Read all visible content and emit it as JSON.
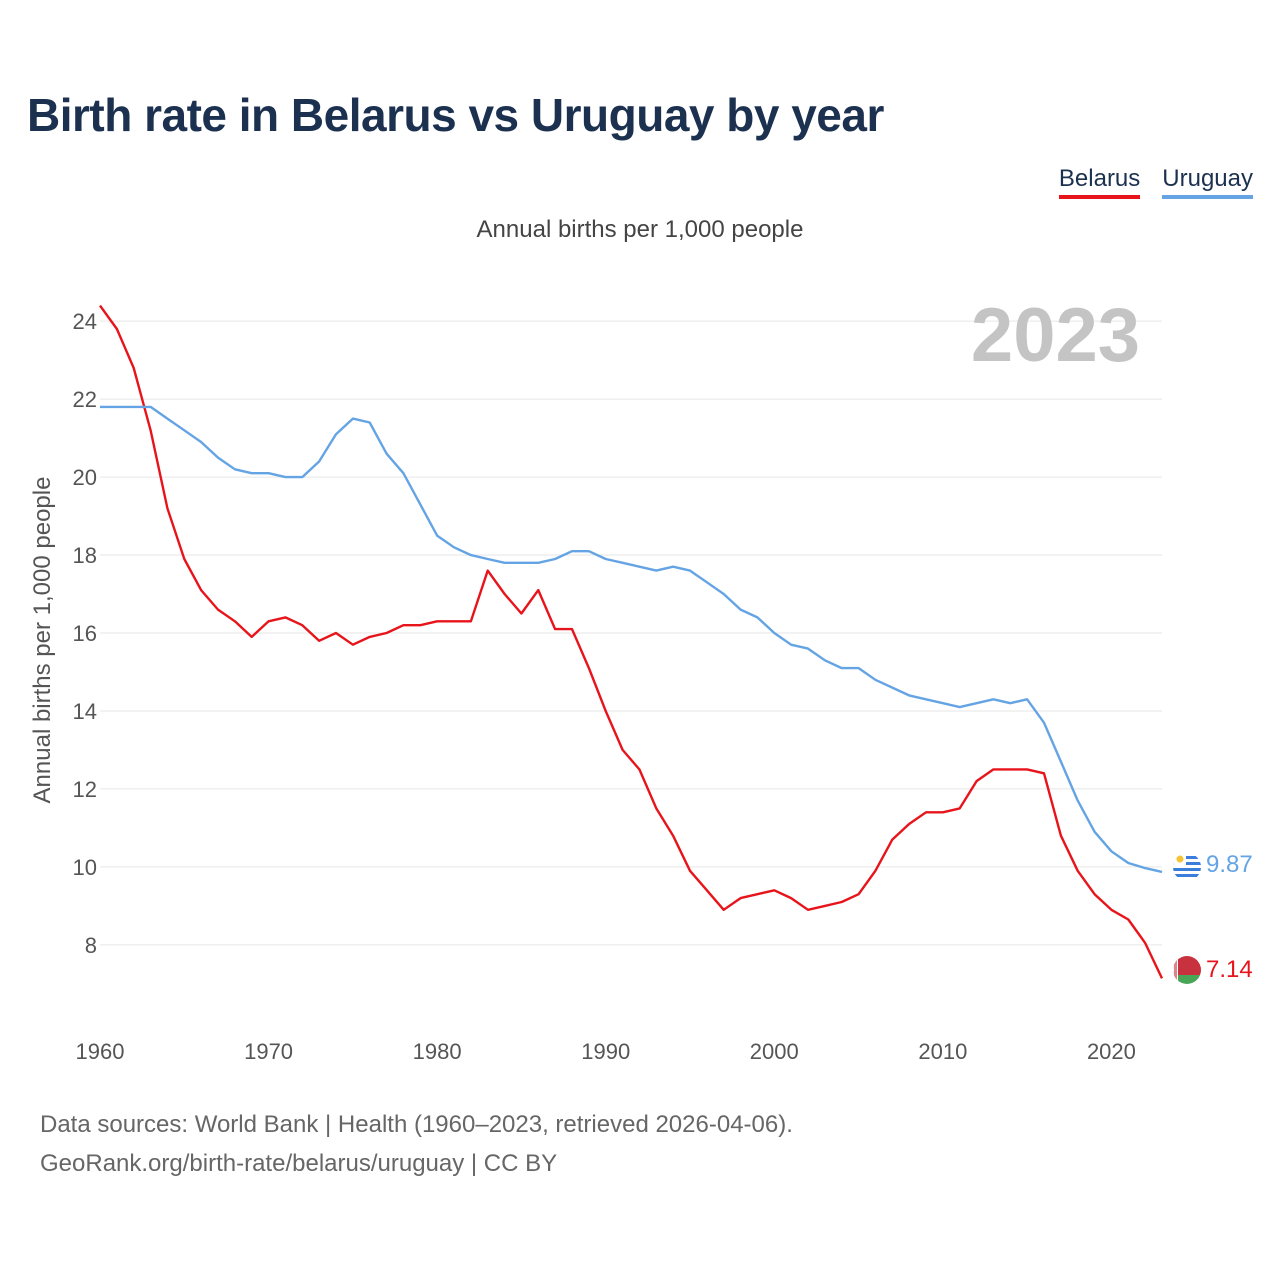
{
  "title": "Birth rate in Belarus vs Uruguay by year",
  "subtitle": "Annual births per 1,000 people",
  "legend": [
    {
      "label": "Belarus",
      "color": "#e8141b"
    },
    {
      "label": "Uruguay",
      "color": "#64a4e4"
    }
  ],
  "year_display": "2023",
  "footer": {
    "line1": "Data sources: World Bank | Health (1960–2023, retrieved 2026-04-06).",
    "line2": "GeoRank.org/birth-rate/belarus/uruguay | CC BY"
  },
  "chart_data": {
    "type": "line",
    "title": "Birth rate in Belarus vs Uruguay by year",
    "ylabel": "Annual births per 1,000 people",
    "xlabel": "",
    "xlim": [
      1960,
      2023
    ],
    "ylim": [
      6.2,
      24.8
    ],
    "x_ticks": [
      1960,
      1970,
      1980,
      1990,
      2000,
      2010,
      2020
    ],
    "y_ticks": [
      8,
      10,
      12,
      14,
      16,
      18,
      20,
      22,
      24
    ],
    "grid": true,
    "series": [
      {
        "name": "Belarus",
        "color": "#e8141b",
        "end_label": "7.14",
        "flag": "belarus-flag",
        "x": [
          1960,
          1961,
          1962,
          1963,
          1964,
          1965,
          1966,
          1967,
          1968,
          1969,
          1970,
          1971,
          1972,
          1973,
          1974,
          1975,
          1976,
          1977,
          1978,
          1979,
          1980,
          1981,
          1982,
          1983,
          1984,
          1985,
          1986,
          1987,
          1988,
          1989,
          1990,
          1991,
          1992,
          1993,
          1994,
          1995,
          1996,
          1997,
          1998,
          1999,
          2000,
          2001,
          2002,
          2003,
          2004,
          2005,
          2006,
          2007,
          2008,
          2009,
          2010,
          2011,
          2012,
          2013,
          2014,
          2015,
          2016,
          2017,
          2018,
          2019,
          2020,
          2021,
          2022,
          2023
        ],
        "values": [
          24.4,
          23.8,
          22.8,
          21.2,
          19.2,
          17.9,
          17.1,
          16.6,
          16.3,
          15.9,
          16.3,
          16.4,
          16.2,
          15.8,
          16.0,
          15.7,
          15.9,
          16.0,
          16.2,
          16.2,
          16.3,
          16.3,
          16.3,
          17.6,
          17.0,
          16.5,
          17.1,
          16.1,
          16.1,
          15.1,
          14.0,
          13.0,
          12.5,
          11.5,
          10.8,
          9.9,
          9.4,
          8.9,
          9.2,
          9.3,
          9.4,
          9.2,
          8.9,
          9.0,
          9.1,
          9.3,
          9.9,
          10.7,
          11.1,
          11.4,
          11.4,
          11.5,
          12.2,
          12.5,
          12.5,
          12.5,
          12.4,
          10.8,
          9.9,
          9.3,
          8.9,
          8.65,
          8.05,
          7.14
        ]
      },
      {
        "name": "Uruguay",
        "color": "#64a4e4",
        "end_label": "9.87",
        "flag": "uruguay-flag",
        "x": [
          1960,
          1961,
          1962,
          1963,
          1964,
          1965,
          1966,
          1967,
          1968,
          1969,
          1970,
          1971,
          1972,
          1973,
          1974,
          1975,
          1976,
          1977,
          1978,
          1979,
          1980,
          1981,
          1982,
          1983,
          1984,
          1985,
          1986,
          1987,
          1988,
          1989,
          1990,
          1991,
          1992,
          1993,
          1994,
          1995,
          1996,
          1997,
          1998,
          1999,
          2000,
          2001,
          2002,
          2003,
          2004,
          2005,
          2006,
          2007,
          2008,
          2009,
          2010,
          2011,
          2012,
          2013,
          2014,
          2015,
          2016,
          2017,
          2018,
          2019,
          2020,
          2021,
          2022,
          2023
        ],
        "values": [
          21.8,
          21.8,
          21.8,
          21.8,
          21.5,
          21.2,
          20.9,
          20.5,
          20.2,
          20.1,
          20.1,
          20.0,
          20.0,
          20.4,
          21.1,
          21.5,
          21.4,
          20.6,
          20.1,
          19.3,
          18.5,
          18.2,
          18.0,
          17.9,
          17.8,
          17.8,
          17.8,
          17.9,
          18.1,
          18.1,
          17.9,
          17.8,
          17.7,
          17.6,
          17.7,
          17.6,
          17.3,
          17.0,
          16.6,
          16.4,
          16.0,
          15.7,
          15.6,
          15.3,
          15.1,
          15.1,
          14.8,
          14.6,
          14.4,
          14.3,
          14.2,
          14.1,
          14.2,
          14.3,
          14.2,
          14.3,
          13.7,
          12.7,
          11.7,
          10.9,
          10.4,
          10.1,
          9.97,
          9.87
        ]
      }
    ]
  }
}
